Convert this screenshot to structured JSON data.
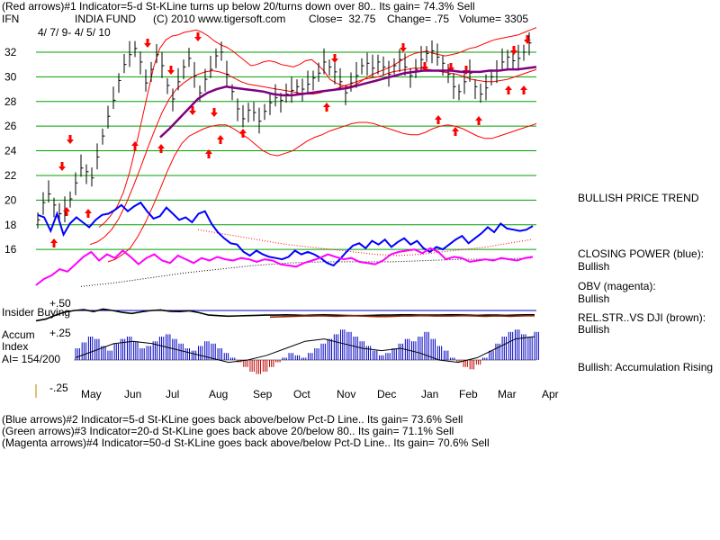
{
  "header": {
    "line1": "(Red arrows)#1 Indicator=5-d St-KLine turns up below 20/turns down over 80.. Its gain= 74.3% Sell",
    "ticker": "IFN",
    "title": "INDIA FUND",
    "copyright": "(C) 2010 www.tigersoft.com",
    "close": "Close=  32.75",
    "change": "Change= .75",
    "volume": "Volume= 3305",
    "date_range": "4/ 7/ 9- 4/ 5/ 10"
  },
  "indicator_labels": {
    "insider_plus50": "+.50",
    "insider_buying": "Insider Buying",
    "accum": "Accum",
    "plus25": "+.25",
    "index": "Index",
    "ai": "AI= 154/200",
    "minus25": "-.25"
  },
  "side_panel": {
    "trend": "BULLISH PRICE TREND",
    "closing_power_label": "CLOSING POWER (blue):",
    "closing_power_value": "Bullish",
    "obv_label": "OBV (magenta):",
    "obv_value": "Bullish",
    "relstr_label": "REL.STR..VS DJI (brown):",
    "relstr_value": "Bullish",
    "accum_status": "Bullish: Accumulation Rising"
  },
  "footer": {
    "line1": "(Blue arrows)#2 Indicator=5-d St-KLine goes back above/below Pct-D Line.. Its gain= 73.6% Sell",
    "line2": "(Green arrows)#3 Indicator=20-d St-KLine goes back above 20/below 80.. Its gain= 71.1% Sell",
    "line3": "(Magenta arrows)#4 Indicator=50-d St-KLine goes back above/below Pct-D Line.. Its gain= 70.6% Sell"
  },
  "colors": {
    "price_bars": "#000000",
    "bands": "#ff0000",
    "ma": "#800080",
    "closing_power": "#0000ff",
    "obv": "#ff00ff",
    "relstr": "#8b2500",
    "accum_pos": "#0000c0",
    "accum_neg": "#c00000",
    "grid": "#00a000"
  },
  "chart_data": {
    "type": "line",
    "title": "INDIA FUND",
    "y_ticks": [
      32,
      30,
      28,
      26,
      24,
      22,
      20,
      18,
      16
    ],
    "ylim": [
      15,
      34
    ],
    "x_months": [
      "May",
      "Jun",
      "Jul",
      "Aug",
      "Sep",
      "Oct",
      "Nov",
      "Dec",
      "Jan",
      "Feb",
      "Mar",
      "Apr"
    ],
    "grid": true,
    "price_closes": [
      18.4,
      19.8,
      20.5,
      19.6,
      18.9,
      19.2,
      20.1,
      21.4,
      22.6,
      22.3,
      21.8,
      23.5,
      25.2,
      26.8,
      28.1,
      29.7,
      31.0,
      31.8,
      32.3,
      31.2,
      29.5,
      30.6,
      31.8,
      30.9,
      29.3,
      28.2,
      29.6,
      30.8,
      31.5,
      30.1,
      28.7,
      29.8,
      30.6,
      31.7,
      32.0,
      30.2,
      28.8,
      27.4,
      26.6,
      27.3,
      27.1,
      26.4,
      27.2,
      27.9,
      28.3,
      28.1,
      28.6,
      28.9,
      29.2,
      29.0,
      29.4,
      29.9,
      30.3,
      31.2,
      30.8,
      30.4,
      29.6,
      28.7,
      29.5,
      30.1,
      30.9,
      31.1,
      30.7,
      31.2,
      30.8,
      30.2,
      30.9,
      31.4,
      30.8,
      30.1,
      30.6,
      31.4,
      31.9,
      32.1,
      31.6,
      31.1,
      30.2,
      29.2,
      28.8,
      29.6,
      30.3,
      29.2,
      28.6,
      29.1,
      30.0,
      30.5,
      31.2,
      31.6,
      31.3,
      31.5,
      32.0,
      32.75
    ],
    "upper_band": [
      17.8,
      18.2,
      18.8,
      19.5,
      20.6,
      22.2,
      24.2,
      26.4,
      28.6,
      30.8,
      32.3,
      33.0,
      33.3,
      33.4,
      33.6,
      33.7,
      33.8,
      33.6,
      33.3,
      32.9,
      32.6,
      32.4,
      32.1,
      31.7,
      31.3,
      30.9,
      31.0,
      31.2,
      31.3,
      31.2,
      31.0,
      30.9,
      30.8,
      31.0,
      31.3,
      31.4,
      31.0,
      30.5,
      29.8,
      29.5,
      29.3,
      29.2,
      29.3,
      29.6,
      29.9,
      30.2,
      30.4,
      30.6,
      30.8,
      31.1,
      31.4,
      31.7,
      31.9,
      32.0,
      32.1,
      31.9,
      31.8,
      31.7,
      31.8,
      31.9,
      32.1,
      32.3,
      32.4,
      32.6,
      32.8,
      33.0,
      33.1,
      33.2,
      33.3,
      33.4,
      33.6,
      33.8,
      34.0
    ],
    "mid_band": [
      16.4,
      16.6,
      17.0,
      17.6,
      18.5,
      19.7,
      21.1,
      22.6,
      24.2,
      25.7,
      27.1,
      28.2,
      29.0,
      29.5,
      29.9,
      30.2,
      30.4,
      30.5,
      30.4,
      30.2,
      29.9,
      29.6,
      29.4,
      29.3,
      29.2,
      29.1,
      29.0,
      28.9,
      28.8,
      28.7,
      28.6,
      28.6,
      28.7,
      28.9,
      29.0,
      29.2,
      29.4,
      29.6,
      29.8,
      29.9,
      30.0,
      30.2,
      30.4,
      30.5,
      30.6,
      30.7,
      30.7,
      30.6,
      30.5,
      30.4,
      30.3,
      30.2,
      30.0,
      29.8,
      29.7,
      29.6,
      29.6,
      29.7,
      29.8,
      30.0,
      30.2,
      30.4,
      30.6
    ],
    "lower_band": [
      15.0,
      15.2,
      15.6,
      16.1,
      17.0,
      18.1,
      19.4,
      20.8,
      22.3,
      23.6,
      24.6,
      25.2,
      25.5,
      25.8,
      26.0,
      26.1,
      26.1,
      25.8,
      25.4,
      25.0,
      24.5,
      24.0,
      23.7,
      23.6,
      23.8,
      24.0,
      24.4,
      24.8,
      25.1,
      25.3,
      25.6,
      25.8,
      26.0,
      26.2,
      26.3,
      26.3,
      26.2,
      26.0,
      25.8,
      25.6,
      25.4,
      25.3,
      25.3,
      25.5,
      25.8,
      26.0,
      26.1,
      26.0,
      25.8,
      25.5,
      25.2,
      25.0,
      25.0,
      25.2,
      25.4,
      25.6,
      25.8,
      26.0,
      26.2
    ],
    "moving_average": [
      25.1,
      25.8,
      26.6,
      27.4,
      28.2,
      28.7,
      29.0,
      29.2,
      29.1,
      29.0,
      28.9,
      28.8,
      28.6,
      28.5,
      28.5,
      28.6,
      28.7,
      28.8,
      28.9,
      29.0,
      29.1,
      29.3,
      29.5,
      29.7,
      29.9,
      30.1,
      30.3,
      30.4,
      30.5,
      30.5,
      30.5,
      30.5,
      30.4,
      30.4,
      30.4,
      30.5,
      30.5,
      30.6,
      30.6,
      30.7,
      30.8
    ],
    "closing_power": [
      18.8,
      18.6,
      17.5,
      18.9,
      17.2,
      18.1,
      18.6,
      18.2,
      17.8,
      18.4,
      18.8,
      18.9,
      19.2,
      19.6,
      19.1,
      19.5,
      19.8,
      19.1,
      18.5,
      18.7,
      19.4,
      18.9,
      18.4,
      18.6,
      18.2,
      18.9,
      19.1,
      18.1,
      17.4,
      16.9,
      16.5,
      16.4,
      15.8,
      15.5,
      15.9,
      15.6,
      15.4,
      15.3,
      15.2,
      15.4,
      15.9,
      15.6,
      15.8,
      15.6,
      15.3,
      14.9,
      14.7,
      15.2,
      15.8,
      16.3,
      16.5,
      16.1,
      16.7,
      16.4,
      16.8,
      16.2,
      16.6,
      16.9,
      16.4,
      16.7,
      16.1,
      15.8,
      16.2,
      16.0,
      16.4,
      16.8,
      17.1,
      16.5,
      16.9,
      17.3,
      17.8,
      17.4,
      18.1,
      17.7,
      17.6,
      17.5,
      17.6,
      17.9
    ],
    "obv": [
      13.1,
      13.6,
      13.9,
      14.4,
      14.2,
      14.8,
      15.4,
      15.8,
      15.1,
      15.6,
      15.3,
      15.9,
      15.4,
      14.8,
      15.3,
      15.6,
      15.1,
      14.9,
      15.5,
      15.2,
      14.9,
      15.3,
      15.1,
      15.4,
      15.2,
      15.1,
      15.3,
      15.2,
      15.0,
      15.2,
      15.1,
      14.8,
      14.7,
      14.6,
      14.9,
      15.1,
      15.3,
      15.6,
      15.4,
      15.2,
      15.3,
      15.0,
      14.9,
      14.8,
      15.1,
      15.6,
      15.8,
      15.9,
      16.0,
      15.7,
      16.1,
      15.8,
      15.2,
      15.4,
      15.3,
      15.0,
      15.1,
      15.2,
      15.1,
      15.3,
      15.2,
      15.1,
      15.3,
      15.4
    ],
    "relstr": [
      0.12,
      0.18,
      0.32,
      0.44,
      0.5,
      0.53,
      0.46,
      0.55,
      0.5,
      0.43,
      0.39,
      0.45,
      0.5,
      0.52,
      0.47,
      0.46,
      0.49,
      0.42,
      0.33,
      0.31,
      0.29,
      0.3,
      0.31,
      0.32,
      0.33,
      0.33,
      0.34,
      0.33,
      0.32,
      0.33,
      0.34,
      0.33,
      0.32,
      0.31,
      0.31,
      0.32,
      0.33,
      0.33,
      0.34,
      0.34,
      0.33,
      0.33,
      0.33,
      0.34,
      0.34,
      0.33,
      0.32,
      0.33,
      0.33,
      0.32,
      0.33,
      0.34,
      0.34
    ],
    "accum_index": [
      0.1,
      0.15,
      0.2,
      0.18,
      0.12,
      0.08,
      0.14,
      0.18,
      0.2,
      0.16,
      0.1,
      0.12,
      0.16,
      0.2,
      0.22,
      0.18,
      0.14,
      0.1,
      0.08,
      0.12,
      0.16,
      0.14,
      0.1,
      0.06,
      0.02,
      -0.02,
      -0.06,
      -0.1,
      -0.12,
      -0.1,
      -0.06,
      -0.02,
      0.02,
      0.06,
      0.04,
      0.02,
      0.06,
      0.1,
      0.14,
      0.18,
      0.22,
      0.26,
      0.24,
      0.2,
      0.16,
      0.12,
      0.08,
      0.04,
      0.06,
      0.1,
      0.14,
      0.18,
      0.16,
      0.2,
      0.24,
      0.18,
      0.12,
      0.08,
      0.02,
      -0.02,
      -0.06,
      -0.08,
      -0.04,
      0.02,
      0.08,
      0.14,
      0.2,
      0.24,
      0.26,
      0.22,
      0.2,
      0.24
    ]
  }
}
